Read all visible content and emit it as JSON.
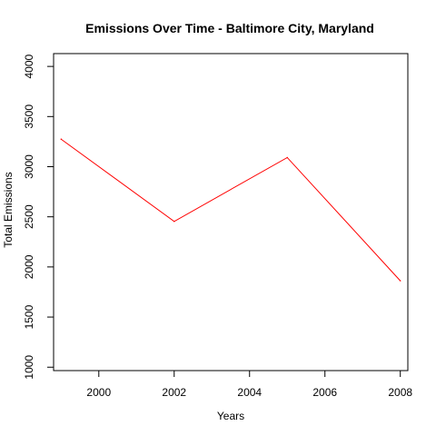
{
  "chart_data": {
    "type": "line",
    "title": "Emissions Over Time - Baltimore City, Maryland",
    "xlabel": "Years",
    "ylabel": "Total Emissions",
    "x": [
      1999,
      2002,
      2005,
      2008
    ],
    "series": [
      {
        "values": [
          3274,
          2454,
          3091,
          1862
        ],
        "color": "#ff0000"
      }
    ],
    "xlim": [
      1998.8,
      2008.2
    ],
    "ylim": [
      1000,
      4000
    ],
    "xticks": [
      "2000",
      "2002",
      "2004",
      "2006",
      "2008"
    ],
    "yticks": [
      "1000",
      "1500",
      "2000",
      "2500",
      "3000",
      "3500",
      "4000"
    ],
    "grid": false,
    "legend": "none"
  }
}
